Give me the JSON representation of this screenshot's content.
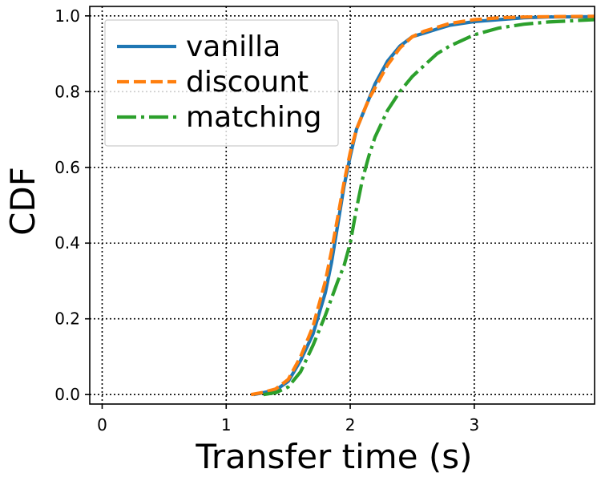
{
  "chart_data": {
    "type": "line",
    "title": "",
    "xlabel": "Transfer time (s)",
    "ylabel": "CDF",
    "xlim": [
      -0.1,
      3.97
    ],
    "ylim": [
      -0.025,
      1.025
    ],
    "xticks": [
      0,
      1,
      2,
      3
    ],
    "xtick_labels": [
      "0",
      "1",
      "2",
      "3"
    ],
    "yticks": [
      0.0,
      0.2,
      0.4,
      0.6,
      0.8,
      1.0
    ],
    "ytick_labels": [
      "0.0",
      "0.2",
      "0.4",
      "0.6",
      "0.8",
      "1.0"
    ],
    "grid": true,
    "legend_position": "upper-left",
    "series": [
      {
        "name": "vanilla",
        "color": "#1f77b4",
        "style": "solid",
        "x": [
          1.22,
          1.3,
          1.4,
          1.5,
          1.6,
          1.7,
          1.8,
          1.85,
          1.9,
          1.95,
          2.0,
          2.05,
          2.1,
          2.15,
          2.2,
          2.3,
          2.4,
          2.5,
          2.6,
          2.7,
          2.8,
          3.0,
          3.2,
          3.4,
          3.6,
          3.97
        ],
        "y": [
          0.0,
          0.005,
          0.012,
          0.035,
          0.09,
          0.16,
          0.27,
          0.35,
          0.45,
          0.55,
          0.63,
          0.7,
          0.74,
          0.78,
          0.82,
          0.88,
          0.92,
          0.945,
          0.955,
          0.965,
          0.975,
          0.985,
          0.99,
          0.995,
          0.997,
          0.998
        ]
      },
      {
        "name": "discount",
        "color": "#ff7f0e",
        "style": "dashed",
        "x": [
          1.2,
          1.3,
          1.4,
          1.5,
          1.6,
          1.7,
          1.8,
          1.85,
          1.9,
          1.95,
          2.0,
          2.05,
          2.1,
          2.15,
          2.2,
          2.3,
          2.4,
          2.5,
          2.6,
          2.7,
          2.8,
          3.0,
          3.2,
          3.4,
          3.6,
          3.97
        ],
        "y": [
          0.0,
          0.006,
          0.015,
          0.04,
          0.1,
          0.18,
          0.3,
          0.38,
          0.47,
          0.56,
          0.64,
          0.7,
          0.74,
          0.78,
          0.81,
          0.87,
          0.915,
          0.945,
          0.96,
          0.97,
          0.98,
          0.99,
          0.995,
          0.997,
          0.998,
          0.999
        ]
      },
      {
        "name": "matching",
        "color": "#2ca02c",
        "style": "dashdot",
        "x": [
          1.3,
          1.4,
          1.5,
          1.6,
          1.7,
          1.8,
          1.9,
          1.95,
          2.0,
          2.05,
          2.1,
          2.15,
          2.2,
          2.3,
          2.4,
          2.5,
          2.6,
          2.7,
          2.8,
          3.0,
          3.2,
          3.4,
          3.6,
          3.97
        ],
        "y": [
          0.0,
          0.005,
          0.02,
          0.06,
          0.13,
          0.21,
          0.3,
          0.34,
          0.4,
          0.49,
          0.57,
          0.63,
          0.68,
          0.75,
          0.8,
          0.84,
          0.87,
          0.9,
          0.92,
          0.95,
          0.968,
          0.978,
          0.984,
          0.99
        ]
      }
    ]
  }
}
